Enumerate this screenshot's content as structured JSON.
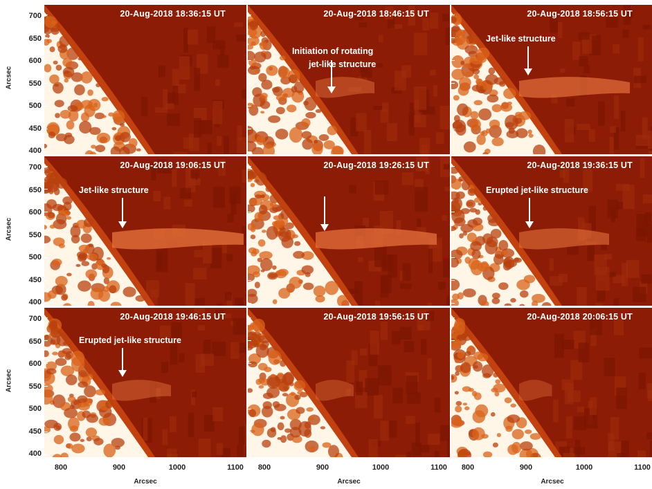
{
  "figure": {
    "panels": [
      {
        "timestamp": "20-Aug-2018 18:36:15 UT",
        "annotation": "",
        "jet": 0
      },
      {
        "timestamp": "20-Aug-2018 18:46:15 UT",
        "annotation": "Initiation of rotating\njet-like structure",
        "jet": 0.3
      },
      {
        "timestamp": "20-Aug-2018 18:56:15 UT",
        "annotation": "Jet-like structure",
        "jet": 0.8
      },
      {
        "timestamp": "20-Aug-2018 19:06:15 UT",
        "annotation": "Jet-like structure",
        "jet": 1.0
      },
      {
        "timestamp": "20-Aug-2018 19:26:15 UT",
        "annotation": "",
        "jet": 0.9
      },
      {
        "timestamp": "20-Aug-2018 19:36:15 UT",
        "annotation": "Erupted jet-like structure",
        "jet": 0.6
      },
      {
        "timestamp": "20-Aug-2018 19:46:15 UT",
        "annotation": "Erupted jet-like structure",
        "jet": 0.3
      },
      {
        "timestamp": "20-Aug-2018 19:56:15 UT",
        "annotation": "",
        "jet": 0.1
      },
      {
        "timestamp": "20-Aug-2018 20:06:15 UT",
        "annotation": "",
        "jet": 0.05
      }
    ],
    "y_ticks": [
      "700",
      "650",
      "600",
      "550",
      "500",
      "450",
      "400"
    ],
    "x_ticks": [
      "800",
      "900",
      "1000",
      "1100"
    ],
    "axis_label": "Arcsec",
    "colors": {
      "background": "#8c1c06",
      "limb": "#fff6e8",
      "granule": "#d9631a",
      "jet": "#e8743e"
    }
  }
}
